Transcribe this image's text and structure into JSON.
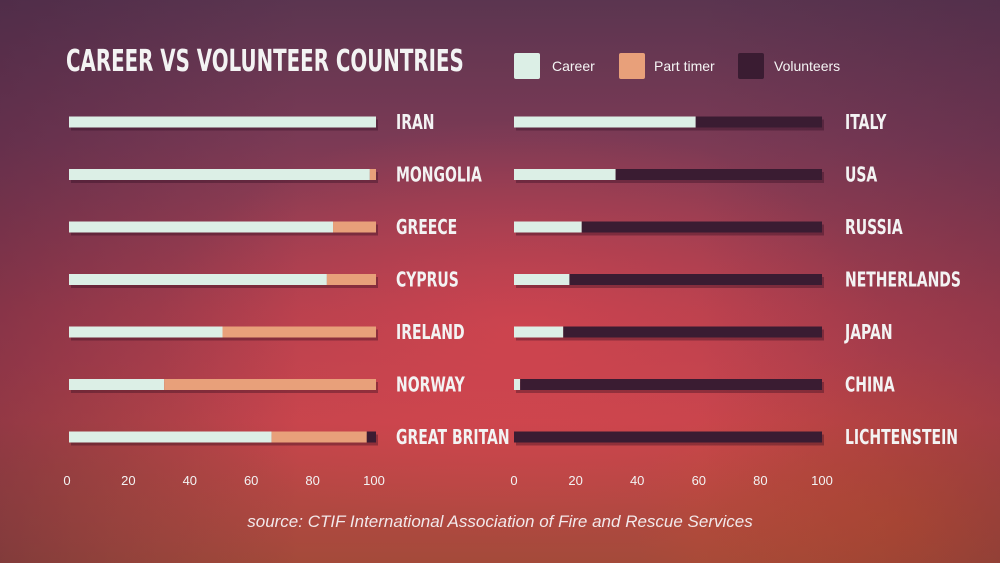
{
  "title": "CAREER VS VOLUNTEER COUNTRIES",
  "legend": [
    {
      "label": "Career",
      "color": "#dcefe6"
    },
    {
      "label": "Part timer",
      "color": "#e8a07a"
    },
    {
      "label": "Volunteers",
      "color": "#3a1c32"
    }
  ],
  "source": "source: CTIF International Association of Fire and Rescue Services",
  "chart_data": [
    {
      "type": "bar",
      "orientation": "horizontal",
      "stacked": true,
      "categories": [
        "IRAN",
        "MONGOLIA",
        "GREECE",
        "CYPRUS",
        "IRELAND",
        "NORWAY",
        "GREAT BRITAN"
      ],
      "series": [
        {
          "name": "Career",
          "color": "#dcefe6",
          "values": [
            100,
            98,
            86,
            84,
            50,
            31,
            66
          ]
        },
        {
          "name": "Part timer",
          "color": "#e8a07a",
          "values": [
            0,
            2,
            14,
            16,
            50,
            69,
            31
          ]
        },
        {
          "name": "Volunteers",
          "color": "#3a1c32",
          "values": [
            0,
            0,
            0,
            0,
            0,
            0,
            3
          ]
        }
      ],
      "xlim": [
        0,
        100
      ],
      "xticks": [
        "0",
        "20",
        "40",
        "60",
        "80",
        "100"
      ],
      "grid": false,
      "label_position": "right"
    },
    {
      "type": "bar",
      "orientation": "horizontal",
      "stacked": true,
      "categories": [
        "ITALY",
        "USA",
        "RUSSIA",
        "NETHERLANDS",
        "JAPAN",
        "CHINA",
        "LICHTENSTEIN"
      ],
      "series": [
        {
          "name": "Career",
          "color": "#dcefe6",
          "values": [
            59,
            33,
            22,
            18,
            16,
            2,
            0
          ]
        },
        {
          "name": "Part timer",
          "color": "#e8a07a",
          "values": [
            0,
            0,
            0,
            0,
            0,
            0,
            0
          ]
        },
        {
          "name": "Volunteers",
          "color": "#3a1c32",
          "values": [
            41,
            67,
            78,
            82,
            84,
            98,
            100
          ]
        }
      ],
      "xlim": [
        0,
        100
      ],
      "xticks": [
        "0",
        "20",
        "40",
        "60",
        "80",
        "100"
      ],
      "grid": false,
      "label_position": "right"
    }
  ]
}
